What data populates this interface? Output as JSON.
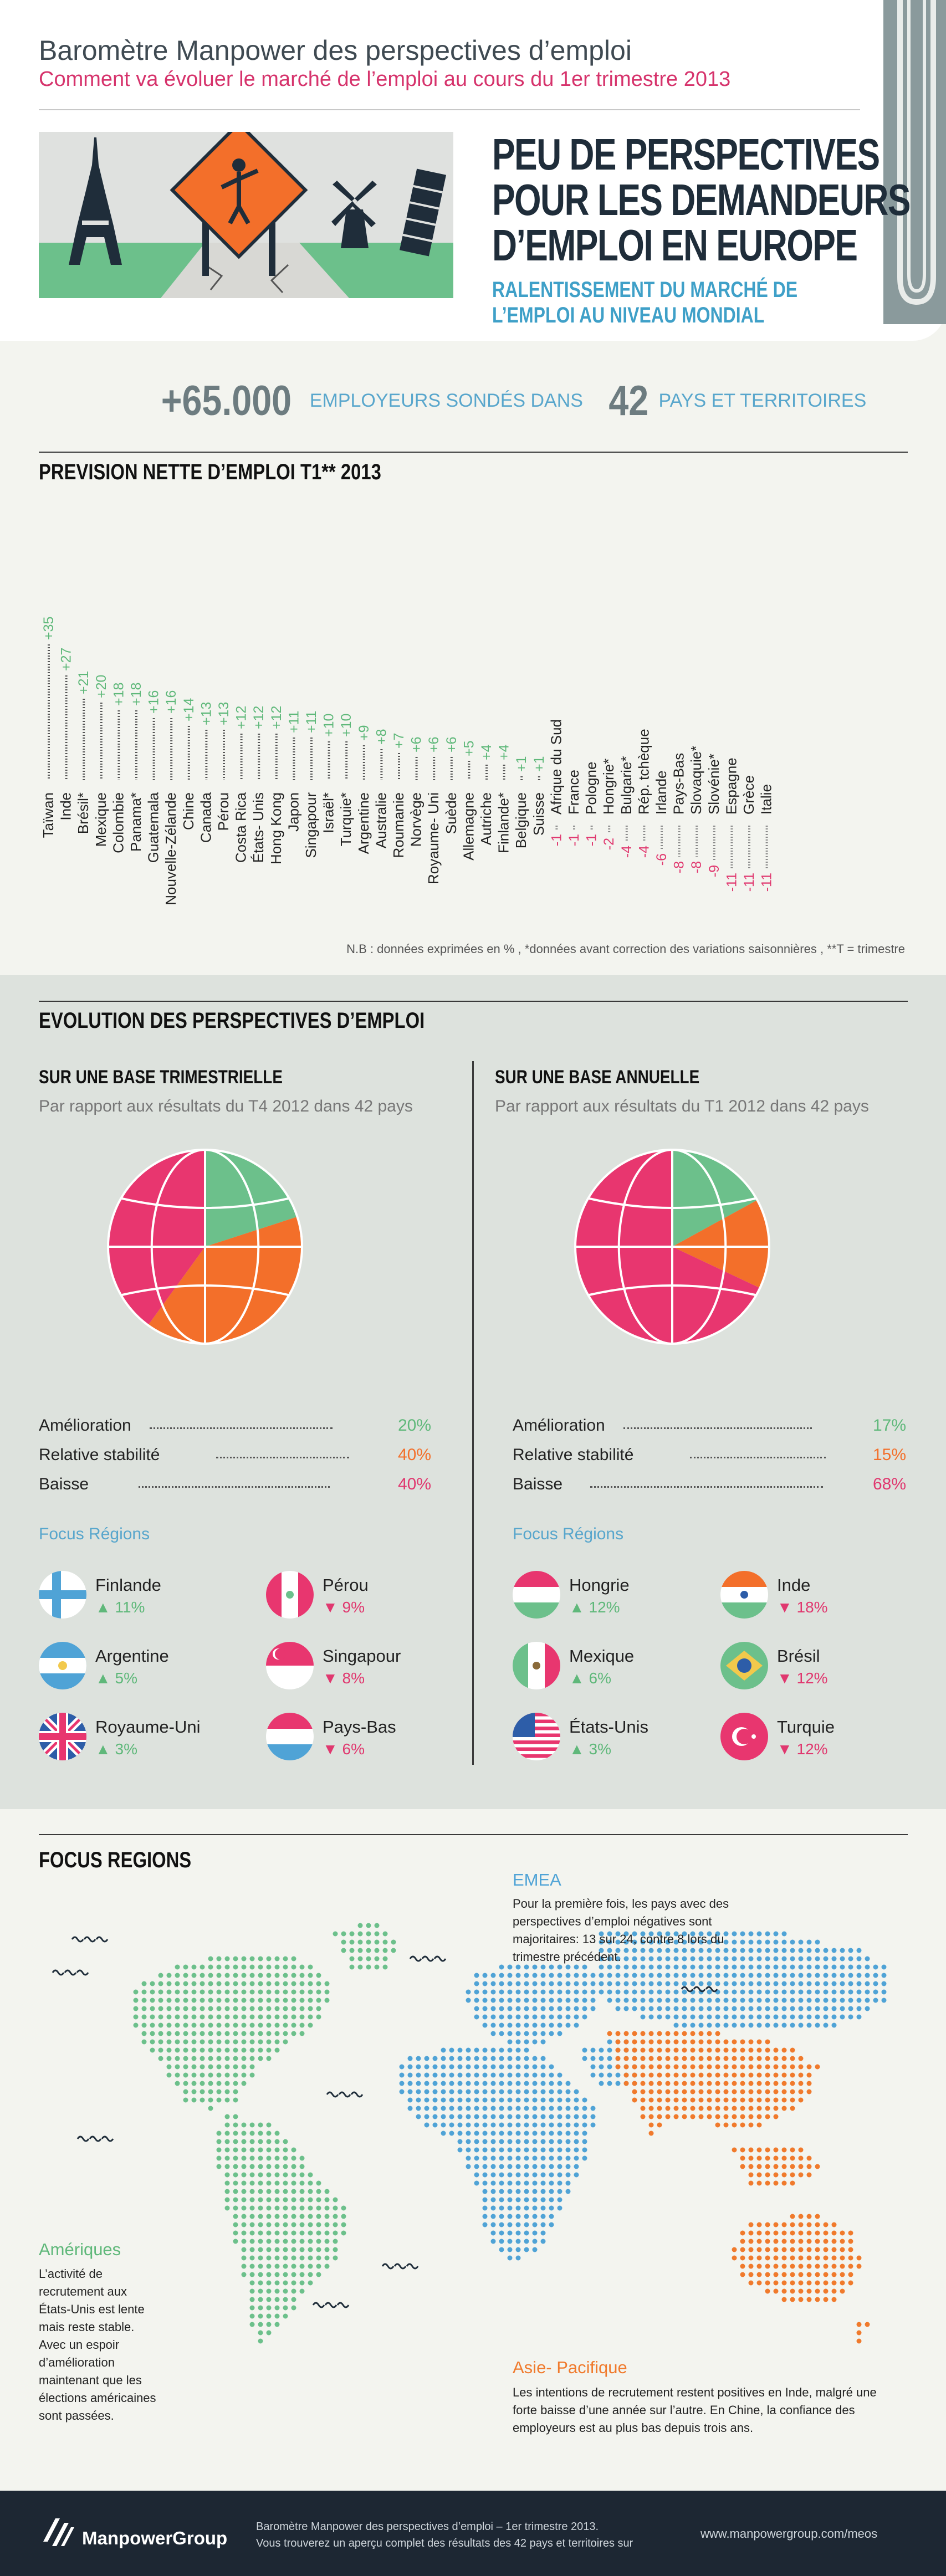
{
  "header": {
    "title": "Baromètre Manpower des perspectives d’emploi",
    "subtitle": "Comment va évoluer le marché de l’emploi au cours du 1er trimestre 2013",
    "headline": [
      "PEU DE PERSPECTIVES",
      "POUR LES DEMANDEURS",
      "D’EMPLOI EN EUROPE"
    ],
    "subheadline": [
      "RALENTISSEMENT DU MARCHÉ DE",
      "L’EMPLOI AU NIVEAU MONDIAL"
    ]
  },
  "stats": {
    "employers_value": "+65.000",
    "employers_label": "EMPLOYEURS SONDÉS DANS",
    "countries_value": "42",
    "countries_label": "PAYS ET TERRITOIRES"
  },
  "forecast": {
    "title": "PREVISION NETTE D’EMPLOI T1** 2013",
    "note": "N.B : données exprimées en % , *données avant correction des variations saisonnières , **T = trimestre"
  },
  "chart_data": {
    "type": "bar",
    "title": "PREVISION NETTE D’EMPLOI T1** 2013",
    "categories": [
      "Taïwan",
      "Inde",
      "Brésil*",
      "Mexique",
      "Colombie",
      "Panama*",
      "Guatemala",
      "Nouvelle-Zélande",
      "Chine",
      "Canada",
      "Pérou",
      "Costa Rica",
      "États- Unis",
      "Hong Kong",
      "Japon",
      "Singapour",
      "Israël*",
      "Turquie*",
      "Argentine",
      "Australie",
      "Roumanie",
      "Norvège",
      "Royaume- Uni",
      "Suède",
      "Allemagne",
      "Autriche",
      "Finlande*",
      "Belgique",
      "Suisse",
      "Afrique du  Sud",
      "France",
      "Pologne",
      "Hongrie*",
      "Bulgarie*",
      "Rép. tchèque",
      "Irlande",
      "Pays-Bas",
      "Slovaquie*",
      "Slovénie*",
      "Espagne",
      "Grèce",
      "Italie"
    ],
    "values": [
      35,
      27,
      21,
      20,
      18,
      18,
      16,
      16,
      14,
      13,
      13,
      12,
      12,
      12,
      11,
      11,
      10,
      10,
      9,
      8,
      7,
      6,
      6,
      6,
      5,
      4,
      4,
      1,
      1,
      -1,
      -1,
      -1,
      -2,
      -4,
      -4,
      -6,
      -8,
      -8,
      -9,
      -11,
      -11,
      -11
    ],
    "labels": [
      "+35",
      "+27",
      "+21",
      "+20",
      "+18",
      "+18",
      "+16",
      "+16",
      "+14",
      "+13",
      "+13",
      "+12",
      "+12",
      "+12",
      "+11",
      "+11",
      "+10",
      "+10",
      "+9",
      "+8",
      "+7",
      "+6",
      "+6",
      "+6",
      "+5",
      "+4",
      "+4",
      "+1",
      "+1",
      "-1",
      "-1",
      "-1",
      "-2",
      "-4",
      "-4",
      "-6",
      "-8",
      "-8",
      "-9",
      "-11",
      "-11",
      "-11"
    ],
    "positive_color": "#5fb87a",
    "negative_color": "#e0386f"
  },
  "evolution": {
    "title": "EVOLUTION DES PERSPECTIVES D’EMPLOI",
    "focus_label": "Focus  Régions",
    "quarterly": {
      "title": "SUR UNE BASE TRIMESTRIELLE",
      "desc": "Par rapport aux résultats du T4 2012 dans 42 pays",
      "pie": [
        {
          "label": "Amélioration",
          "value": 20,
          "pct": "20%",
          "color": "#6cc08b"
        },
        {
          "label": "Relative stabilité",
          "value": 40,
          "pct": "40%",
          "color": "#f36f2a"
        },
        {
          "label": "Baisse",
          "value": 40,
          "pct": "40%",
          "color": "#e8366f"
        }
      ],
      "focus": [
        {
          "name": "Finlande",
          "val": "11%",
          "dir": "up",
          "flag": "finland"
        },
        {
          "name": "Pérou",
          "val": "9%",
          "dir": "down",
          "flag": "peru"
        },
        {
          "name": "Argentine",
          "val": "5%",
          "dir": "up",
          "flag": "argentina"
        },
        {
          "name": "Singapour",
          "val": "8%",
          "dir": "down",
          "flag": "singapore"
        },
        {
          "name": "Royaume-Uni",
          "val": "3%",
          "dir": "up",
          "flag": "uk"
        },
        {
          "name": "Pays-Bas",
          "val": "6%",
          "dir": "down",
          "flag": "netherlands"
        }
      ]
    },
    "annual": {
      "title": "SUR UNE BASE ANNUELLE",
      "desc": "Par rapport aux résultats du T1 2012 dans 42 pays",
      "pie": [
        {
          "label": "Amélioration",
          "value": 17,
          "pct": "17%",
          "color": "#6cc08b"
        },
        {
          "label": "Relative stabilité",
          "value": 15,
          "pct": "15%",
          "color": "#f36f2a"
        },
        {
          "label": "Baisse",
          "value": 68,
          "pct": "68%",
          "color": "#e8366f"
        }
      ],
      "focus": [
        {
          "name": "Hongrie",
          "val": "12%",
          "dir": "up",
          "flag": "hungary"
        },
        {
          "name": "Inde",
          "val": "18%",
          "dir": "down",
          "flag": "india"
        },
        {
          "name": "Mexique",
          "val": "6%",
          "dir": "up",
          "flag": "mexico"
        },
        {
          "name": "Brésil",
          "val": "12%",
          "dir": "down",
          "flag": "brazil"
        },
        {
          "name": "États-Unis",
          "val": "3%",
          "dir": "up",
          "flag": "usa"
        },
        {
          "name": "Turquie",
          "val": "12%",
          "dir": "down",
          "flag": "turkey"
        }
      ]
    }
  },
  "focus_regions": {
    "title": "FOCUS REGIONS",
    "emea_title": "EMEA",
    "emea_text": "Pour la première fois, les pays avec des perspectives d’emploi négatives sont majoritaires: 13 sur 24, contre 8 lors du trimestre précédent.",
    "amer_title": "Amériques",
    "amer_text": "L’activité de recrutement aux États-Unis est lente mais reste stable. Avec un espoir d’amélioration maintenant que les élections américaines sont passées.",
    "apac_title": "Asie- Pacifique",
    "apac_text": "Les intentions de recrutement restent positives en Inde, malgré une forte baisse d’une année sur l’autre. En Chine, la confiance des employeurs est au plus bas depuis trois ans.",
    "colors": {
      "americas": "#6cc08b",
      "emea": "#4fa3d6",
      "apac": "#f07a2c"
    }
  },
  "footer": {
    "brand": "ManpowerGroup",
    "line1": "Baromètre Manpower des perspectives d’emploi – 1er trimestre 2013.",
    "line2": "Vous trouverez un aperçu complet des résultats des 42 pays et territoires sur",
    "url": "www.manpowergroup.com/meos"
  }
}
